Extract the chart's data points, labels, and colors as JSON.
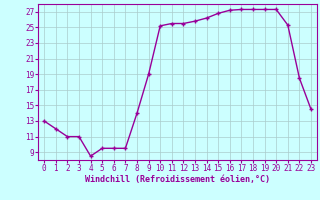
{
  "x": [
    0,
    1,
    2,
    3,
    4,
    5,
    6,
    7,
    8,
    9,
    10,
    11,
    12,
    13,
    14,
    15,
    16,
    17,
    18,
    19,
    20,
    21,
    22,
    23
  ],
  "y": [
    13,
    12,
    11,
    11,
    8.5,
    9.5,
    9.5,
    9.5,
    14,
    19,
    25.2,
    25.5,
    25.5,
    25.8,
    26.2,
    26.8,
    27.2,
    27.3,
    27.3,
    27.3,
    27.3,
    25.3,
    18.5,
    14.5
  ],
  "line_color": "#990099",
  "marker": "+",
  "marker_size": 3.5,
  "marker_linewidth": 1.0,
  "line_width": 1.0,
  "background_color": "#ccffff",
  "grid_color": "#aacccc",
  "xlabel": "Windchill (Refroidissement éolien,°C)",
  "xlabel_fontsize": 6,
  "xlim": [
    -0.5,
    23.5
  ],
  "ylim": [
    8.0,
    28.0
  ],
  "xticks": [
    0,
    1,
    2,
    3,
    4,
    5,
    6,
    7,
    8,
    9,
    10,
    11,
    12,
    13,
    14,
    15,
    16,
    17,
    18,
    19,
    20,
    21,
    22,
    23
  ],
  "yticks": [
    9,
    11,
    13,
    15,
    17,
    19,
    21,
    23,
    25,
    27
  ],
  "tick_fontsize": 5.5
}
